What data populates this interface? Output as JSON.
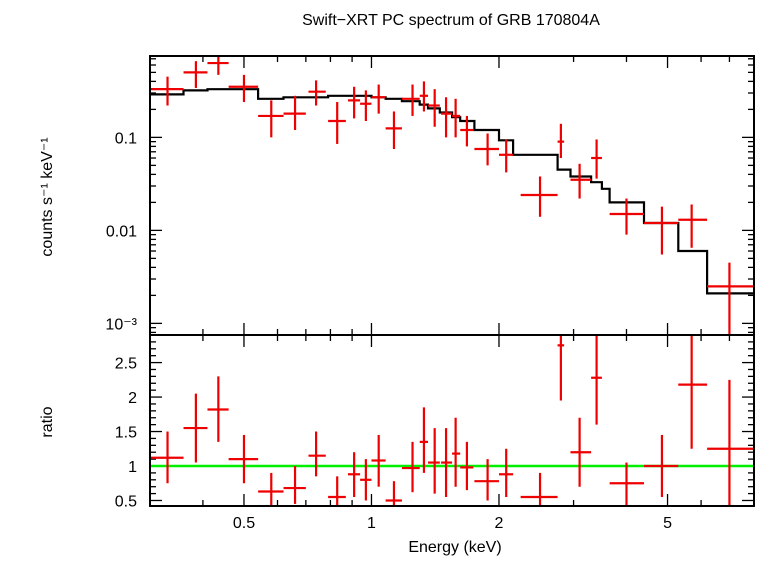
{
  "chart_data": {
    "type": "scatter",
    "title": "Swift−XRT PC spectrum of GRB 170804A",
    "xlabel": "Energy (keV)",
    "x_scale": "log",
    "xlim": [
      0.3,
      8.0
    ],
    "x_ticks": [
      "0.5",
      "1",
      "2",
      "5"
    ],
    "colors": {
      "data": "#ee0000",
      "model": "#000000",
      "unity": "#00ee00",
      "frame": "#000000"
    },
    "panels": [
      {
        "name": "spectrum",
        "ylabel": "counts s⁻¹ keV⁻¹",
        "y_scale": "log",
        "ylim": [
          0.00075,
          0.75
        ],
        "y_ticks": [
          "0.1",
          "0.01",
          "10⁻³"
        ],
        "data": [
          {
            "x": 0.33,
            "xlo": 0.3,
            "xhi": 0.36,
            "y": 0.33,
            "ylo": 0.22,
            "yhi": 0.45
          },
          {
            "x": 0.385,
            "xlo": 0.36,
            "xhi": 0.41,
            "y": 0.5,
            "ylo": 0.34,
            "yhi": 0.66
          },
          {
            "x": 0.435,
            "xlo": 0.41,
            "xhi": 0.46,
            "y": 0.63,
            "ylo": 0.47,
            "yhi": 0.8
          },
          {
            "x": 0.5,
            "xlo": 0.46,
            "xhi": 0.54,
            "y": 0.35,
            "ylo": 0.24,
            "yhi": 0.47
          },
          {
            "x": 0.58,
            "xlo": 0.54,
            "xhi": 0.62,
            "y": 0.17,
            "ylo": 0.1,
            "yhi": 0.25
          },
          {
            "x": 0.66,
            "xlo": 0.62,
            "xhi": 0.7,
            "y": 0.18,
            "ylo": 0.12,
            "yhi": 0.28
          },
          {
            "x": 0.74,
            "xlo": 0.71,
            "xhi": 0.78,
            "y": 0.31,
            "ylo": 0.22,
            "yhi": 0.41
          },
          {
            "x": 0.83,
            "xlo": 0.79,
            "xhi": 0.87,
            "y": 0.15,
            "ylo": 0.085,
            "yhi": 0.24
          },
          {
            "x": 0.91,
            "xlo": 0.88,
            "xhi": 0.94,
            "y": 0.25,
            "ylo": 0.16,
            "yhi": 0.35
          },
          {
            "x": 0.97,
            "xlo": 0.94,
            "xhi": 1.0,
            "y": 0.23,
            "ylo": 0.15,
            "yhi": 0.32
          },
          {
            "x": 1.04,
            "xlo": 1.0,
            "xhi": 1.08,
            "y": 0.27,
            "ylo": 0.18,
            "yhi": 0.37
          },
          {
            "x": 1.13,
            "xlo": 1.08,
            "xhi": 1.18,
            "y": 0.125,
            "ylo": 0.075,
            "yhi": 0.19
          },
          {
            "x": 1.25,
            "xlo": 1.18,
            "xhi": 1.3,
            "y": 0.26,
            "ylo": 0.17,
            "yhi": 0.37
          },
          {
            "x": 1.33,
            "xlo": 1.3,
            "xhi": 1.36,
            "y": 0.28,
            "ylo": 0.19,
            "yhi": 0.4
          },
          {
            "x": 1.41,
            "xlo": 1.36,
            "xhi": 1.45,
            "y": 0.22,
            "ylo": 0.13,
            "yhi": 0.33
          },
          {
            "x": 1.5,
            "xlo": 1.46,
            "xhi": 1.55,
            "y": 0.18,
            "ylo": 0.1,
            "yhi": 0.27
          },
          {
            "x": 1.58,
            "xlo": 1.55,
            "xhi": 1.62,
            "y": 0.17,
            "ylo": 0.1,
            "yhi": 0.26
          },
          {
            "x": 1.68,
            "xlo": 1.62,
            "xhi": 1.74,
            "y": 0.12,
            "ylo": 0.08,
            "yhi": 0.17
          },
          {
            "x": 1.88,
            "xlo": 1.75,
            "xhi": 2.0,
            "y": 0.075,
            "ylo": 0.05,
            "yhi": 0.11
          },
          {
            "x": 2.08,
            "xlo": 2.0,
            "xhi": 2.16,
            "y": 0.065,
            "ylo": 0.042,
            "yhi": 0.095
          },
          {
            "x": 2.5,
            "xlo": 2.25,
            "xhi": 2.75,
            "y": 0.024,
            "ylo": 0.014,
            "yhi": 0.038
          },
          {
            "x": 2.8,
            "xlo": 2.75,
            "xhi": 2.85,
            "y": 0.09,
            "ylo": 0.06,
            "yhi": 0.14
          },
          {
            "x": 3.1,
            "xlo": 2.95,
            "xhi": 3.3,
            "y": 0.035,
            "ylo": 0.022,
            "yhi": 0.052
          },
          {
            "x": 3.4,
            "xlo": 3.3,
            "xhi": 3.5,
            "y": 0.06,
            "ylo": 0.036,
            "yhi": 0.095
          },
          {
            "x": 4.0,
            "xlo": 3.65,
            "xhi": 4.4,
            "y": 0.015,
            "ylo": 0.009,
            "yhi": 0.022
          },
          {
            "x": 4.85,
            "xlo": 4.4,
            "xhi": 5.3,
            "y": 0.012,
            "ylo": 0.0055,
            "yhi": 0.018
          },
          {
            "x": 5.7,
            "xlo": 5.3,
            "xhi": 6.2,
            "y": 0.013,
            "ylo": 0.0065,
            "yhi": 0.019
          },
          {
            "x": 7.0,
            "xlo": 6.2,
            "xhi": 8.0,
            "y": 0.0025,
            "ylo": 0.00075,
            "yhi": 0.0045
          }
        ],
        "model": {
          "edges": [
            0.3,
            0.36,
            0.41,
            0.46,
            0.54,
            0.62,
            0.7,
            0.79,
            0.88,
            1.0,
            1.08,
            1.18,
            1.3,
            1.36,
            1.45,
            1.55,
            1.62,
            1.75,
            2.0,
            2.16,
            2.75,
            2.95,
            3.3,
            3.5,
            3.65,
            4.4,
            5.3,
            6.2,
            8.0
          ],
          "values": [
            0.29,
            0.32,
            0.33,
            0.33,
            0.26,
            0.27,
            0.27,
            0.28,
            0.28,
            0.27,
            0.26,
            0.245,
            0.225,
            0.205,
            0.185,
            0.165,
            0.15,
            0.12,
            0.093,
            0.065,
            0.045,
            0.038,
            0.033,
            0.028,
            0.02,
            0.012,
            0.006,
            0.0021
          ]
        }
      },
      {
        "name": "ratio",
        "ylabel": "ratio",
        "y_scale": "linear",
        "ylim": [
          0.42,
          2.9
        ],
        "y_ticks": [
          "0.5",
          "1",
          "1.5",
          "2",
          "2.5"
        ],
        "unity_line": 1,
        "data": [
          {
            "x": 0.33,
            "xlo": 0.3,
            "xhi": 0.36,
            "y": 1.12,
            "ylo": 0.75,
            "yhi": 1.5
          },
          {
            "x": 0.385,
            "xlo": 0.36,
            "xhi": 0.41,
            "y": 1.55,
            "ylo": 1.05,
            "yhi": 2.05
          },
          {
            "x": 0.435,
            "xlo": 0.41,
            "xhi": 0.46,
            "y": 1.82,
            "ylo": 1.35,
            "yhi": 2.3
          },
          {
            "x": 0.5,
            "xlo": 0.46,
            "xhi": 0.54,
            "y": 1.1,
            "ylo": 0.75,
            "yhi": 1.45
          },
          {
            "x": 0.58,
            "xlo": 0.54,
            "xhi": 0.62,
            "y": 0.63,
            "ylo": 0.42,
            "yhi": 0.9
          },
          {
            "x": 0.66,
            "xlo": 0.62,
            "xhi": 0.7,
            "y": 0.68,
            "ylo": 0.45,
            "yhi": 1.0
          },
          {
            "x": 0.74,
            "xlo": 0.71,
            "xhi": 0.78,
            "y": 1.15,
            "ylo": 0.85,
            "yhi": 1.5
          },
          {
            "x": 0.83,
            "xlo": 0.79,
            "xhi": 0.87,
            "y": 0.55,
            "ylo": 0.42,
            "yhi": 0.85
          },
          {
            "x": 0.91,
            "xlo": 0.88,
            "xhi": 0.94,
            "y": 0.88,
            "ylo": 0.55,
            "yhi": 1.2
          },
          {
            "x": 0.97,
            "xlo": 0.94,
            "xhi": 1.0,
            "y": 0.8,
            "ylo": 0.5,
            "yhi": 1.1
          },
          {
            "x": 1.04,
            "xlo": 1.0,
            "xhi": 1.08,
            "y": 1.08,
            "ylo": 0.7,
            "yhi": 1.45
          },
          {
            "x": 1.13,
            "xlo": 1.08,
            "xhi": 1.18,
            "y": 0.5,
            "ylo": 0.42,
            "yhi": 0.78
          },
          {
            "x": 1.25,
            "xlo": 1.18,
            "xhi": 1.3,
            "y": 0.97,
            "ylo": 0.62,
            "yhi": 1.35
          },
          {
            "x": 1.33,
            "xlo": 1.3,
            "xhi": 1.36,
            "y": 1.35,
            "ylo": 0.9,
            "yhi": 1.85
          },
          {
            "x": 1.41,
            "xlo": 1.36,
            "xhi": 1.45,
            "y": 1.05,
            "ylo": 0.6,
            "yhi": 1.55
          },
          {
            "x": 1.5,
            "xlo": 1.46,
            "xhi": 1.55,
            "y": 1.05,
            "ylo": 0.55,
            "yhi": 1.55
          },
          {
            "x": 1.58,
            "xlo": 1.55,
            "xhi": 1.62,
            "y": 1.18,
            "ylo": 0.7,
            "yhi": 1.7
          },
          {
            "x": 1.68,
            "xlo": 1.62,
            "xhi": 1.74,
            "y": 0.98,
            "ylo": 0.65,
            "yhi": 1.35
          },
          {
            "x": 1.88,
            "xlo": 1.75,
            "xhi": 2.0,
            "y": 0.78,
            "ylo": 0.5,
            "yhi": 1.1
          },
          {
            "x": 2.08,
            "xlo": 2.0,
            "xhi": 2.16,
            "y": 0.88,
            "ylo": 0.55,
            "yhi": 1.25
          },
          {
            "x": 2.5,
            "xlo": 2.25,
            "xhi": 2.75,
            "y": 0.55,
            "ylo": 0.42,
            "yhi": 0.9
          },
          {
            "x": 2.8,
            "xlo": 2.75,
            "xhi": 2.85,
            "y": 2.75,
            "ylo": 1.95,
            "yhi": 2.9
          },
          {
            "x": 3.1,
            "xlo": 2.95,
            "xhi": 3.3,
            "y": 1.2,
            "ylo": 0.7,
            "yhi": 1.7
          },
          {
            "x": 3.4,
            "xlo": 3.3,
            "xhi": 3.5,
            "y": 2.28,
            "ylo": 1.6,
            "yhi": 2.9
          },
          {
            "x": 4.0,
            "xlo": 3.65,
            "xhi": 4.4,
            "y": 0.75,
            "ylo": 0.42,
            "yhi": 1.05
          },
          {
            "x": 4.85,
            "xlo": 4.4,
            "xhi": 5.3,
            "y": 1.0,
            "ylo": 0.55,
            "yhi": 1.45
          },
          {
            "x": 5.7,
            "xlo": 5.3,
            "xhi": 6.2,
            "y": 2.18,
            "ylo": 1.25,
            "yhi": 2.9
          },
          {
            "x": 7.0,
            "xlo": 6.2,
            "xhi": 8.0,
            "y": 1.25,
            "ylo": 0.42,
            "yhi": 2.25
          }
        ]
      }
    ]
  }
}
